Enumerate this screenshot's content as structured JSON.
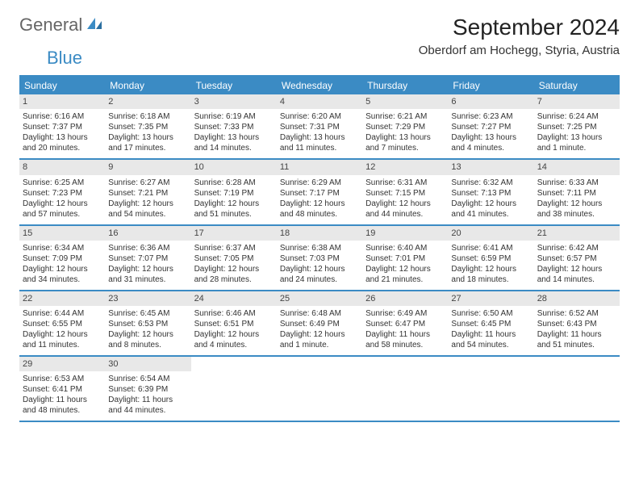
{
  "logo": {
    "text1": "General",
    "text2": "Blue"
  },
  "title": "September 2024",
  "location": "Oberdorf am Hochegg, Styria, Austria",
  "colors": {
    "accent": "#3b8bc4",
    "header_bg": "#3b8bc4",
    "daynum_bg": "#e8e8e8",
    "text": "#333333",
    "bg": "#ffffff"
  },
  "day_headers": [
    "Sunday",
    "Monday",
    "Tuesday",
    "Wednesday",
    "Thursday",
    "Friday",
    "Saturday"
  ],
  "weeks": [
    [
      {
        "n": "1",
        "sr": "Sunrise: 6:16 AM",
        "ss": "Sunset: 7:37 PM",
        "d1": "Daylight: 13 hours",
        "d2": "and 20 minutes."
      },
      {
        "n": "2",
        "sr": "Sunrise: 6:18 AM",
        "ss": "Sunset: 7:35 PM",
        "d1": "Daylight: 13 hours",
        "d2": "and 17 minutes."
      },
      {
        "n": "3",
        "sr": "Sunrise: 6:19 AM",
        "ss": "Sunset: 7:33 PM",
        "d1": "Daylight: 13 hours",
        "d2": "and 14 minutes."
      },
      {
        "n": "4",
        "sr": "Sunrise: 6:20 AM",
        "ss": "Sunset: 7:31 PM",
        "d1": "Daylight: 13 hours",
        "d2": "and 11 minutes."
      },
      {
        "n": "5",
        "sr": "Sunrise: 6:21 AM",
        "ss": "Sunset: 7:29 PM",
        "d1": "Daylight: 13 hours",
        "d2": "and 7 minutes."
      },
      {
        "n": "6",
        "sr": "Sunrise: 6:23 AM",
        "ss": "Sunset: 7:27 PM",
        "d1": "Daylight: 13 hours",
        "d2": "and 4 minutes."
      },
      {
        "n": "7",
        "sr": "Sunrise: 6:24 AM",
        "ss": "Sunset: 7:25 PM",
        "d1": "Daylight: 13 hours",
        "d2": "and 1 minute."
      }
    ],
    [
      {
        "n": "8",
        "sr": "Sunrise: 6:25 AM",
        "ss": "Sunset: 7:23 PM",
        "d1": "Daylight: 12 hours",
        "d2": "and 57 minutes."
      },
      {
        "n": "9",
        "sr": "Sunrise: 6:27 AM",
        "ss": "Sunset: 7:21 PM",
        "d1": "Daylight: 12 hours",
        "d2": "and 54 minutes."
      },
      {
        "n": "10",
        "sr": "Sunrise: 6:28 AM",
        "ss": "Sunset: 7:19 PM",
        "d1": "Daylight: 12 hours",
        "d2": "and 51 minutes."
      },
      {
        "n": "11",
        "sr": "Sunrise: 6:29 AM",
        "ss": "Sunset: 7:17 PM",
        "d1": "Daylight: 12 hours",
        "d2": "and 48 minutes."
      },
      {
        "n": "12",
        "sr": "Sunrise: 6:31 AM",
        "ss": "Sunset: 7:15 PM",
        "d1": "Daylight: 12 hours",
        "d2": "and 44 minutes."
      },
      {
        "n": "13",
        "sr": "Sunrise: 6:32 AM",
        "ss": "Sunset: 7:13 PM",
        "d1": "Daylight: 12 hours",
        "d2": "and 41 minutes."
      },
      {
        "n": "14",
        "sr": "Sunrise: 6:33 AM",
        "ss": "Sunset: 7:11 PM",
        "d1": "Daylight: 12 hours",
        "d2": "and 38 minutes."
      }
    ],
    [
      {
        "n": "15",
        "sr": "Sunrise: 6:34 AM",
        "ss": "Sunset: 7:09 PM",
        "d1": "Daylight: 12 hours",
        "d2": "and 34 minutes."
      },
      {
        "n": "16",
        "sr": "Sunrise: 6:36 AM",
        "ss": "Sunset: 7:07 PM",
        "d1": "Daylight: 12 hours",
        "d2": "and 31 minutes."
      },
      {
        "n": "17",
        "sr": "Sunrise: 6:37 AM",
        "ss": "Sunset: 7:05 PM",
        "d1": "Daylight: 12 hours",
        "d2": "and 28 minutes."
      },
      {
        "n": "18",
        "sr": "Sunrise: 6:38 AM",
        "ss": "Sunset: 7:03 PM",
        "d1": "Daylight: 12 hours",
        "d2": "and 24 minutes."
      },
      {
        "n": "19",
        "sr": "Sunrise: 6:40 AM",
        "ss": "Sunset: 7:01 PM",
        "d1": "Daylight: 12 hours",
        "d2": "and 21 minutes."
      },
      {
        "n": "20",
        "sr": "Sunrise: 6:41 AM",
        "ss": "Sunset: 6:59 PM",
        "d1": "Daylight: 12 hours",
        "d2": "and 18 minutes."
      },
      {
        "n": "21",
        "sr": "Sunrise: 6:42 AM",
        "ss": "Sunset: 6:57 PM",
        "d1": "Daylight: 12 hours",
        "d2": "and 14 minutes."
      }
    ],
    [
      {
        "n": "22",
        "sr": "Sunrise: 6:44 AM",
        "ss": "Sunset: 6:55 PM",
        "d1": "Daylight: 12 hours",
        "d2": "and 11 minutes."
      },
      {
        "n": "23",
        "sr": "Sunrise: 6:45 AM",
        "ss": "Sunset: 6:53 PM",
        "d1": "Daylight: 12 hours",
        "d2": "and 8 minutes."
      },
      {
        "n": "24",
        "sr": "Sunrise: 6:46 AM",
        "ss": "Sunset: 6:51 PM",
        "d1": "Daylight: 12 hours",
        "d2": "and 4 minutes."
      },
      {
        "n": "25",
        "sr": "Sunrise: 6:48 AM",
        "ss": "Sunset: 6:49 PM",
        "d1": "Daylight: 12 hours",
        "d2": "and 1 minute."
      },
      {
        "n": "26",
        "sr": "Sunrise: 6:49 AM",
        "ss": "Sunset: 6:47 PM",
        "d1": "Daylight: 11 hours",
        "d2": "and 58 minutes."
      },
      {
        "n": "27",
        "sr": "Sunrise: 6:50 AM",
        "ss": "Sunset: 6:45 PM",
        "d1": "Daylight: 11 hours",
        "d2": "and 54 minutes."
      },
      {
        "n": "28",
        "sr": "Sunrise: 6:52 AM",
        "ss": "Sunset: 6:43 PM",
        "d1": "Daylight: 11 hours",
        "d2": "and 51 minutes."
      }
    ],
    [
      {
        "n": "29",
        "sr": "Sunrise: 6:53 AM",
        "ss": "Sunset: 6:41 PM",
        "d1": "Daylight: 11 hours",
        "d2": "and 48 minutes."
      },
      {
        "n": "30",
        "sr": "Sunrise: 6:54 AM",
        "ss": "Sunset: 6:39 PM",
        "d1": "Daylight: 11 hours",
        "d2": "and 44 minutes."
      },
      null,
      null,
      null,
      null,
      null
    ]
  ]
}
